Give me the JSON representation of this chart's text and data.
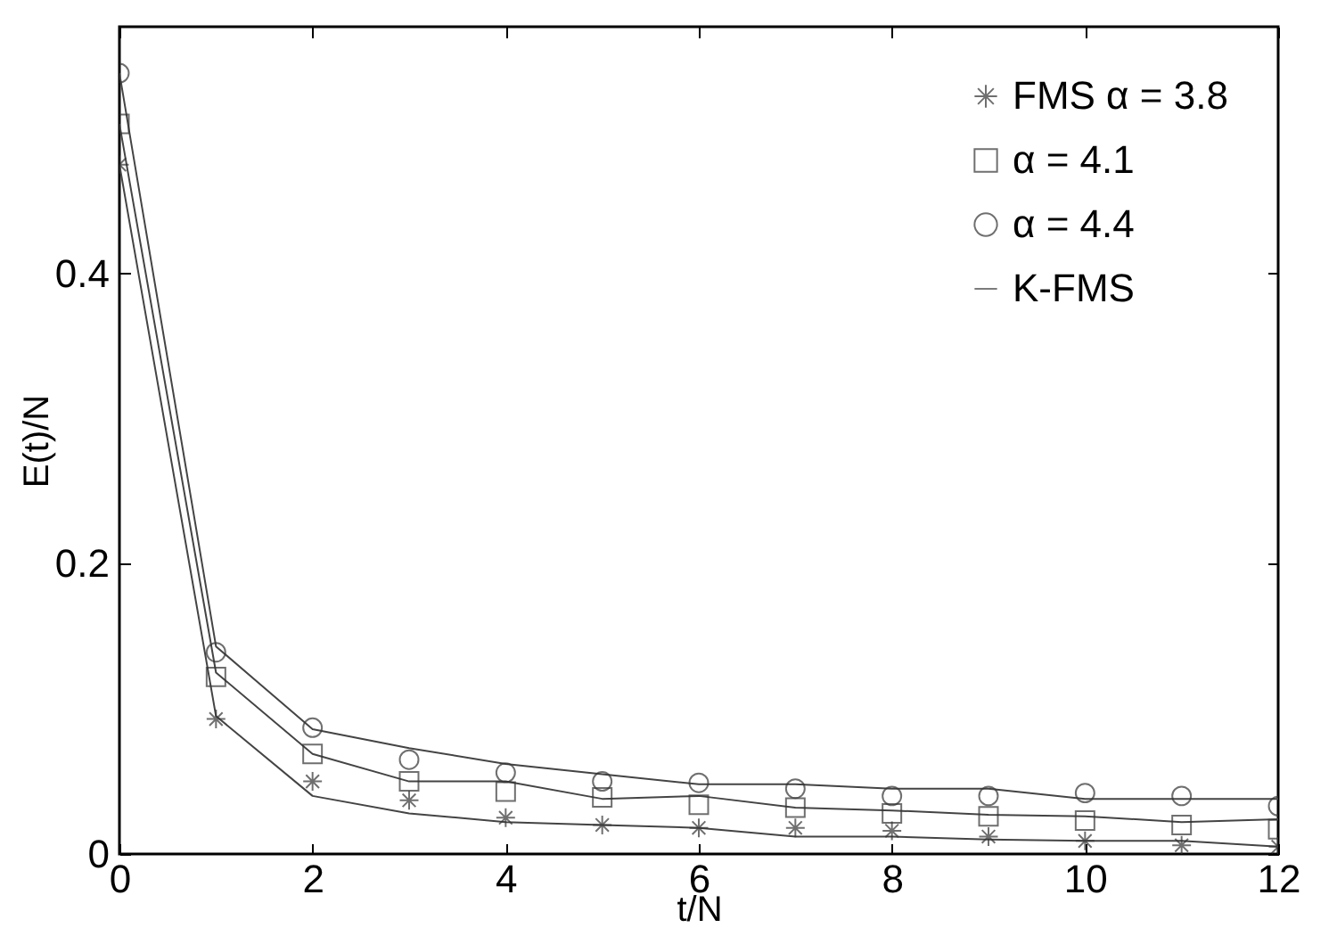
{
  "chart_data": {
    "type": "scatter",
    "xlabel": "t/N",
    "ylabel": "E(t)/N",
    "x": [
      0,
      1,
      2,
      3,
      4,
      5,
      6,
      7,
      8,
      9,
      10,
      11,
      12
    ],
    "xlim": [
      0,
      12
    ],
    "xticks": [
      0,
      2,
      4,
      6,
      8,
      10,
      12
    ],
    "ylim": [
      0,
      0.57
    ],
    "yticks": [
      0,
      0.2,
      0.4
    ],
    "grid": false,
    "legend": "top right",
    "series": [
      {
        "name": "FMS α = 3.8",
        "type": "scatter",
        "marker": "cross",
        "color": "#333333",
        "values": [
          0.475,
          0.093,
          0.05,
          0.037,
          0.025,
          0.02,
          0.018,
          0.018,
          0.016,
          0.012,
          0.009,
          0.006,
          0.005
        ]
      },
      {
        "name": "α = 4.1",
        "type": "scatter",
        "marker": "square",
        "color": "#333333",
        "values": [
          0.503,
          0.122,
          0.069,
          0.05,
          0.043,
          0.039,
          0.034,
          0.032,
          0.028,
          0.026,
          0.023,
          0.02,
          0.017
        ]
      },
      {
        "name": "α = 4.4",
        "type": "scatter",
        "marker": "circle",
        "color": "#333333",
        "values": [
          0.538,
          0.139,
          0.087,
          0.065,
          0.056,
          0.05,
          0.049,
          0.045,
          0.04,
          0.04,
          0.042,
          0.04,
          0.033
        ]
      },
      {
        "name": "K-FMS",
        "type": "line",
        "marker": "none",
        "color": "#444444",
        "values": [
          0.475,
          0.095,
          0.04,
          0.028,
          0.022,
          0.02,
          0.018,
          0.012,
          0.012,
          0.01,
          0.009,
          0.009,
          0.005
        ]
      },
      {
        "type": "line",
        "marker": "none",
        "color": "#444444",
        "values": [
          0.503,
          0.125,
          0.069,
          0.05,
          0.05,
          0.038,
          0.04,
          0.032,
          0.03,
          0.027,
          0.026,
          0.022,
          0.024
        ]
      },
      {
        "type": "line",
        "marker": "none",
        "color": "#444444",
        "values": [
          0.538,
          0.143,
          0.086,
          0.073,
          0.062,
          0.055,
          0.048,
          0.048,
          0.045,
          0.045,
          0.038,
          0.038,
          0.038
        ]
      }
    ]
  }
}
